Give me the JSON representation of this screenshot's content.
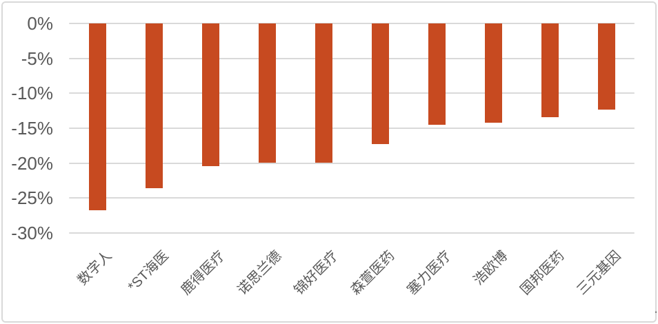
{
  "page": {
    "trailing_period": "."
  },
  "chart_data": {
    "type": "bar",
    "title": "",
    "xlabel": "",
    "ylabel": "",
    "categories": [
      "数字人",
      "*ST海医",
      "鹿得医疗",
      "诺思兰德",
      "锦好医疗",
      "森萱医药",
      "塞力医疗",
      "浩欧博",
      "国邦医药",
      "三元基因"
    ],
    "values": [
      -26.7,
      -23.6,
      -20.4,
      -19.9,
      -19.9,
      -17.3,
      -14.5,
      -14.2,
      -13.4,
      -12.3
    ],
    "unit": "%",
    "y_ticks": [
      "0%",
      "-5%",
      "-10%",
      "-15%",
      "-20%",
      "-25%",
      "-30%"
    ],
    "ylim": [
      -30,
      0
    ],
    "grid": true,
    "legend": false,
    "bar_color": "#c74a20",
    "gridline_color": "#d9d9d9",
    "axis_text_color": "#595959",
    "border_color": "#d9d9d9"
  }
}
